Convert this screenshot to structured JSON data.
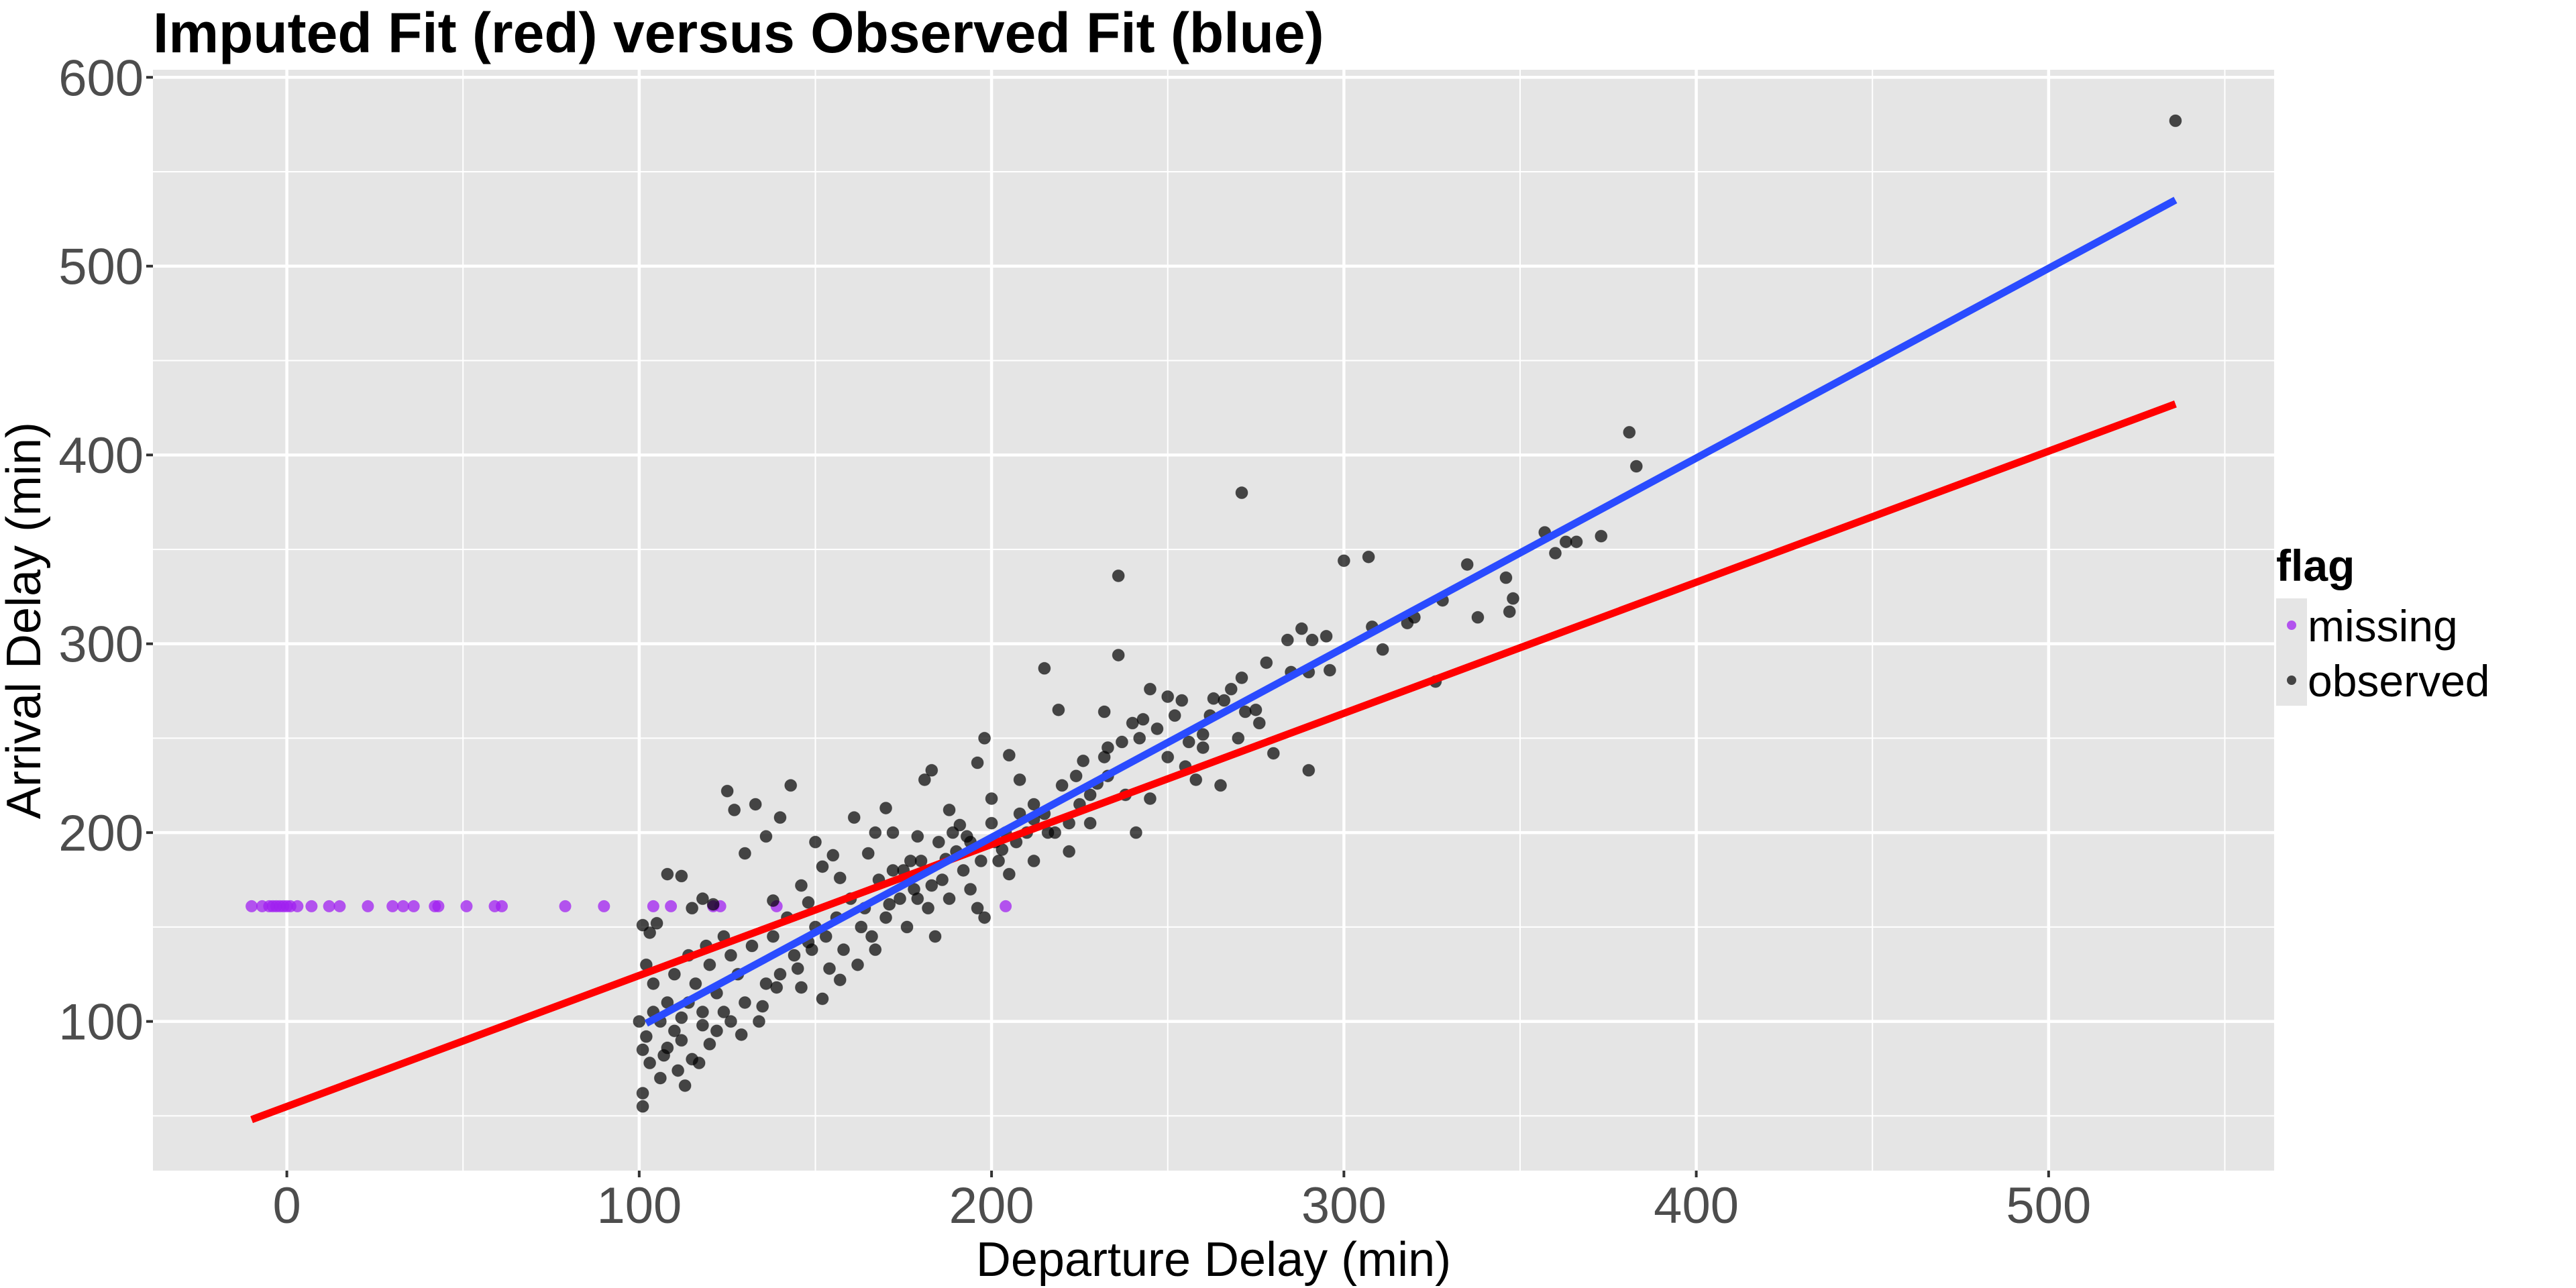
{
  "chart_data": {
    "type": "scatter",
    "title": "Imputed Fit (red) versus Observed Fit (blue)",
    "xlabel": "Departure Delay (min)",
    "ylabel": "Arrival Delay (min)",
    "xlim": [
      -38,
      564
    ],
    "ylim": [
      21,
      604
    ],
    "x_ticks": [
      0,
      100,
      200,
      300,
      400,
      500
    ],
    "x_tick_labels": [
      "0",
      "100",
      "200",
      "300",
      "400",
      "500"
    ],
    "x_minor": [
      50,
      150,
      250,
      350,
      450,
      550
    ],
    "y_ticks": [
      100,
      200,
      300,
      400,
      500,
      600
    ],
    "y_tick_labels": [
      "100",
      "200",
      "300",
      "400",
      "500",
      "600"
    ],
    "y_minor": [
      50,
      150,
      250,
      350,
      450,
      550
    ],
    "grid": true,
    "legend": {
      "title": "flag",
      "placement": "right",
      "entries": [
        {
          "label": "missing",
          "color": "#a020f0"
        },
        {
          "label": "observed",
          "color": "#000000"
        }
      ]
    },
    "colors": {
      "panel": "#e5e5e5",
      "grid": "#ffffff",
      "missing": "#a020f0",
      "observed": "#000000",
      "imputed_fit": "#ff0000",
      "observed_fit": "#2a4bff"
    },
    "series": [
      {
        "name": "missing",
        "y_constant": 161,
        "x": [
          -10,
          -7,
          -5,
          -4,
          -3,
          -2,
          -1,
          0,
          1,
          3,
          7,
          12,
          15,
          23,
          30,
          33,
          36,
          42,
          43,
          51,
          59,
          61,
          79,
          90,
          104,
          109,
          121,
          123,
          139,
          204
        ]
      },
      {
        "name": "observed",
        "points": [
          [
            536,
            577
          ],
          [
            381,
            412
          ],
          [
            383,
            394
          ],
          [
            271,
            380
          ],
          [
            236,
            336
          ],
          [
            300,
            344
          ],
          [
            307,
            346
          ],
          [
            373,
            357
          ],
          [
            357,
            359
          ],
          [
            360,
            348
          ],
          [
            363,
            354
          ],
          [
            366,
            354
          ],
          [
            346,
            335
          ],
          [
            347,
            317
          ],
          [
            348,
            324
          ],
          [
            335,
            342
          ],
          [
            328,
            323
          ],
          [
            338,
            314
          ],
          [
            320,
            314
          ],
          [
            318,
            311
          ],
          [
            311,
            297
          ],
          [
            308,
            309
          ],
          [
            295,
            304
          ],
          [
            291,
            302
          ],
          [
            288,
            308
          ],
          [
            284,
            302
          ],
          [
            290,
            285
          ],
          [
            296,
            286
          ],
          [
            326,
            280
          ],
          [
            290,
            233
          ],
          [
            280,
            242
          ],
          [
            276,
            258
          ],
          [
            272,
            264
          ],
          [
            268,
            276
          ],
          [
            263,
            271
          ],
          [
            260,
            252
          ],
          [
            258,
            228
          ],
          [
            254,
            270
          ],
          [
            250,
            272
          ],
          [
            245,
            276
          ],
          [
            240,
            258
          ],
          [
            236,
            294
          ],
          [
            243,
            260
          ],
          [
            232,
            264
          ],
          [
            233,
            245
          ],
          [
            230,
            226
          ],
          [
            226,
            238
          ],
          [
            222,
            205
          ],
          [
            219,
            265
          ],
          [
            215,
            287
          ],
          [
            212,
            207
          ],
          [
            208,
            228
          ],
          [
            205,
            241
          ],
          [
            203,
            191
          ],
          [
            200,
            218
          ],
          [
            198,
            250
          ],
          [
            196,
            237
          ],
          [
            194,
            195
          ],
          [
            191,
            204
          ],
          [
            188,
            212
          ],
          [
            185,
            195
          ],
          [
            181,
            228
          ],
          [
            183,
            233
          ],
          [
            179,
            198
          ],
          [
            177,
            185
          ],
          [
            172,
            200
          ],
          [
            170,
            213
          ],
          [
            167,
            200
          ],
          [
            165,
            189
          ],
          [
            161,
            208
          ],
          [
            157,
            176
          ],
          [
            155,
            188
          ],
          [
            152,
            182
          ],
          [
            150,
            195
          ],
          [
            148,
            163
          ],
          [
            146,
            172
          ],
          [
            143,
            225
          ],
          [
            140,
            208
          ],
          [
            138,
            164
          ],
          [
            136,
            198
          ],
          [
            133,
            215
          ],
          [
            130,
            189
          ],
          [
            127,
            212
          ],
          [
            125,
            222
          ],
          [
            121,
            162
          ],
          [
            118,
            165
          ],
          [
            115,
            160
          ],
          [
            112,
            177
          ],
          [
            108,
            178
          ],
          [
            105,
            152
          ],
          [
            103,
            147
          ],
          [
            101,
            151
          ],
          [
            102,
            130
          ],
          [
            104,
            120
          ],
          [
            100,
            100
          ],
          [
            102,
            92
          ],
          [
            101,
            85
          ],
          [
            103,
            78
          ],
          [
            101,
            62
          ],
          [
            101,
            55
          ],
          [
            106,
            70
          ],
          [
            108,
            86
          ],
          [
            110,
            95
          ],
          [
            112,
            102
          ],
          [
            114,
            110
          ],
          [
            116,
            120
          ],
          [
            118,
            98
          ],
          [
            120,
            130
          ],
          [
            122,
            115
          ],
          [
            124,
            105
          ],
          [
            126,
            135
          ],
          [
            128,
            125
          ],
          [
            130,
            110
          ],
          [
            132,
            140
          ],
          [
            134,
            100
          ],
          [
            136,
            120
          ],
          [
            138,
            145
          ],
          [
            140,
            125
          ],
          [
            142,
            155
          ],
          [
            144,
            135
          ],
          [
            146,
            118
          ],
          [
            148,
            142
          ],
          [
            150,
            150
          ],
          [
            152,
            112
          ],
          [
            154,
            128
          ],
          [
            156,
            155
          ],
          [
            158,
            138
          ],
          [
            160,
            165
          ],
          [
            162,
            130
          ],
          [
            164,
            160
          ],
          [
            166,
            145
          ],
          [
            168,
            175
          ],
          [
            170,
            155
          ],
          [
            172,
            180
          ],
          [
            174,
            165
          ],
          [
            176,
            150
          ],
          [
            178,
            170
          ],
          [
            180,
            185
          ],
          [
            182,
            160
          ],
          [
            184,
            145
          ],
          [
            186,
            175
          ],
          [
            188,
            165
          ],
          [
            190,
            190
          ],
          [
            192,
            180
          ],
          [
            194,
            170
          ],
          [
            196,
            160
          ],
          [
            198,
            155
          ],
          [
            200,
            205
          ],
          [
            202,
            185
          ],
          [
            205,
            178
          ],
          [
            207,
            195
          ],
          [
            210,
            200
          ],
          [
            212,
            185
          ],
          [
            215,
            210
          ],
          [
            218,
            200
          ],
          [
            222,
            190
          ],
          [
            225,
            215
          ],
          [
            228,
            205
          ],
          [
            233,
            230
          ],
          [
            238,
            220
          ],
          [
            241,
            200
          ],
          [
            245,
            218
          ],
          [
            250,
            240
          ],
          [
            255,
            235
          ],
          [
            260,
            245
          ],
          [
            265,
            225
          ],
          [
            270,
            250
          ],
          [
            275,
            265
          ],
          [
            285,
            285
          ],
          [
            108,
            110
          ],
          [
            112,
            90
          ],
          [
            115,
            80
          ],
          [
            118,
            105
          ],
          [
            122,
            95
          ],
          [
            126,
            100
          ],
          [
            129,
            93
          ],
          [
            110,
            125
          ],
          [
            114,
            135
          ],
          [
            119,
            140
          ],
          [
            124,
            145
          ],
          [
            106,
            100
          ],
          [
            104,
            105
          ],
          [
            107,
            82
          ],
          [
            111,
            74
          ],
          [
            113,
            66
          ],
          [
            117,
            78
          ],
          [
            120,
            88
          ],
          [
            135,
            108
          ],
          [
            139,
            118
          ],
          [
            145,
            128
          ],
          [
            149,
            138
          ],
          [
            153,
            145
          ],
          [
            157,
            122
          ],
          [
            163,
            150
          ],
          [
            167,
            138
          ],
          [
            171,
            162
          ],
          [
            175,
            180
          ],
          [
            179,
            165
          ],
          [
            183,
            172
          ],
          [
            187,
            186
          ],
          [
            189,
            200
          ],
          [
            193,
            198
          ],
          [
            197,
            185
          ],
          [
            201,
            195
          ],
          [
            204,
            200
          ],
          [
            208,
            210
          ],
          [
            212,
            215
          ],
          [
            216,
            200
          ],
          [
            220,
            225
          ],
          [
            224,
            230
          ],
          [
            228,
            220
          ],
          [
            232,
            240
          ],
          [
            237,
            248
          ],
          [
            242,
            250
          ],
          [
            247,
            255
          ],
          [
            252,
            262
          ],
          [
            256,
            248
          ],
          [
            262,
            262
          ],
          [
            266,
            270
          ],
          [
            271,
            282
          ],
          [
            278,
            290
          ]
        ]
      }
    ],
    "fit_lines": [
      {
        "name": "Imputed Fit (red)",
        "color": "#ff0000",
        "from": [
          -10,
          48
        ],
        "to": [
          536,
          427
        ]
      },
      {
        "name": "Observed Fit (blue)",
        "color": "#2a4bff",
        "from": [
          102,
          99
        ],
        "to": [
          536,
          535
        ]
      }
    ]
  }
}
